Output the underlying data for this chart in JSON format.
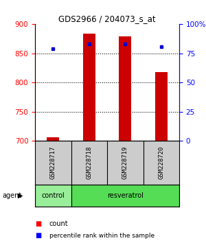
{
  "title": "GDS2966 / 204073_s_at",
  "samples": [
    "GSM228717",
    "GSM228718",
    "GSM228719",
    "GSM228720"
  ],
  "counts": [
    706,
    884,
    879,
    818
  ],
  "percentile_ranks": [
    79,
    83,
    83,
    81
  ],
  "ylim": [
    700,
    900
  ],
  "yticks": [
    700,
    750,
    800,
    850,
    900
  ],
  "y2ticks": [
    0,
    25,
    50,
    75,
    100
  ],
  "y2tick_labels": [
    "0",
    "25",
    "50",
    "75",
    "100%"
  ],
  "y2lim": [
    0,
    100
  ],
  "bar_color": "#cc0000",
  "dot_color": "#0000cc",
  "agent_row_color": "#55dd55",
  "control_color": "#99ee99",
  "sample_bg_color": "#cccccc",
  "bar_width": 0.35,
  "gridline_yticks": [
    750,
    800,
    850
  ]
}
